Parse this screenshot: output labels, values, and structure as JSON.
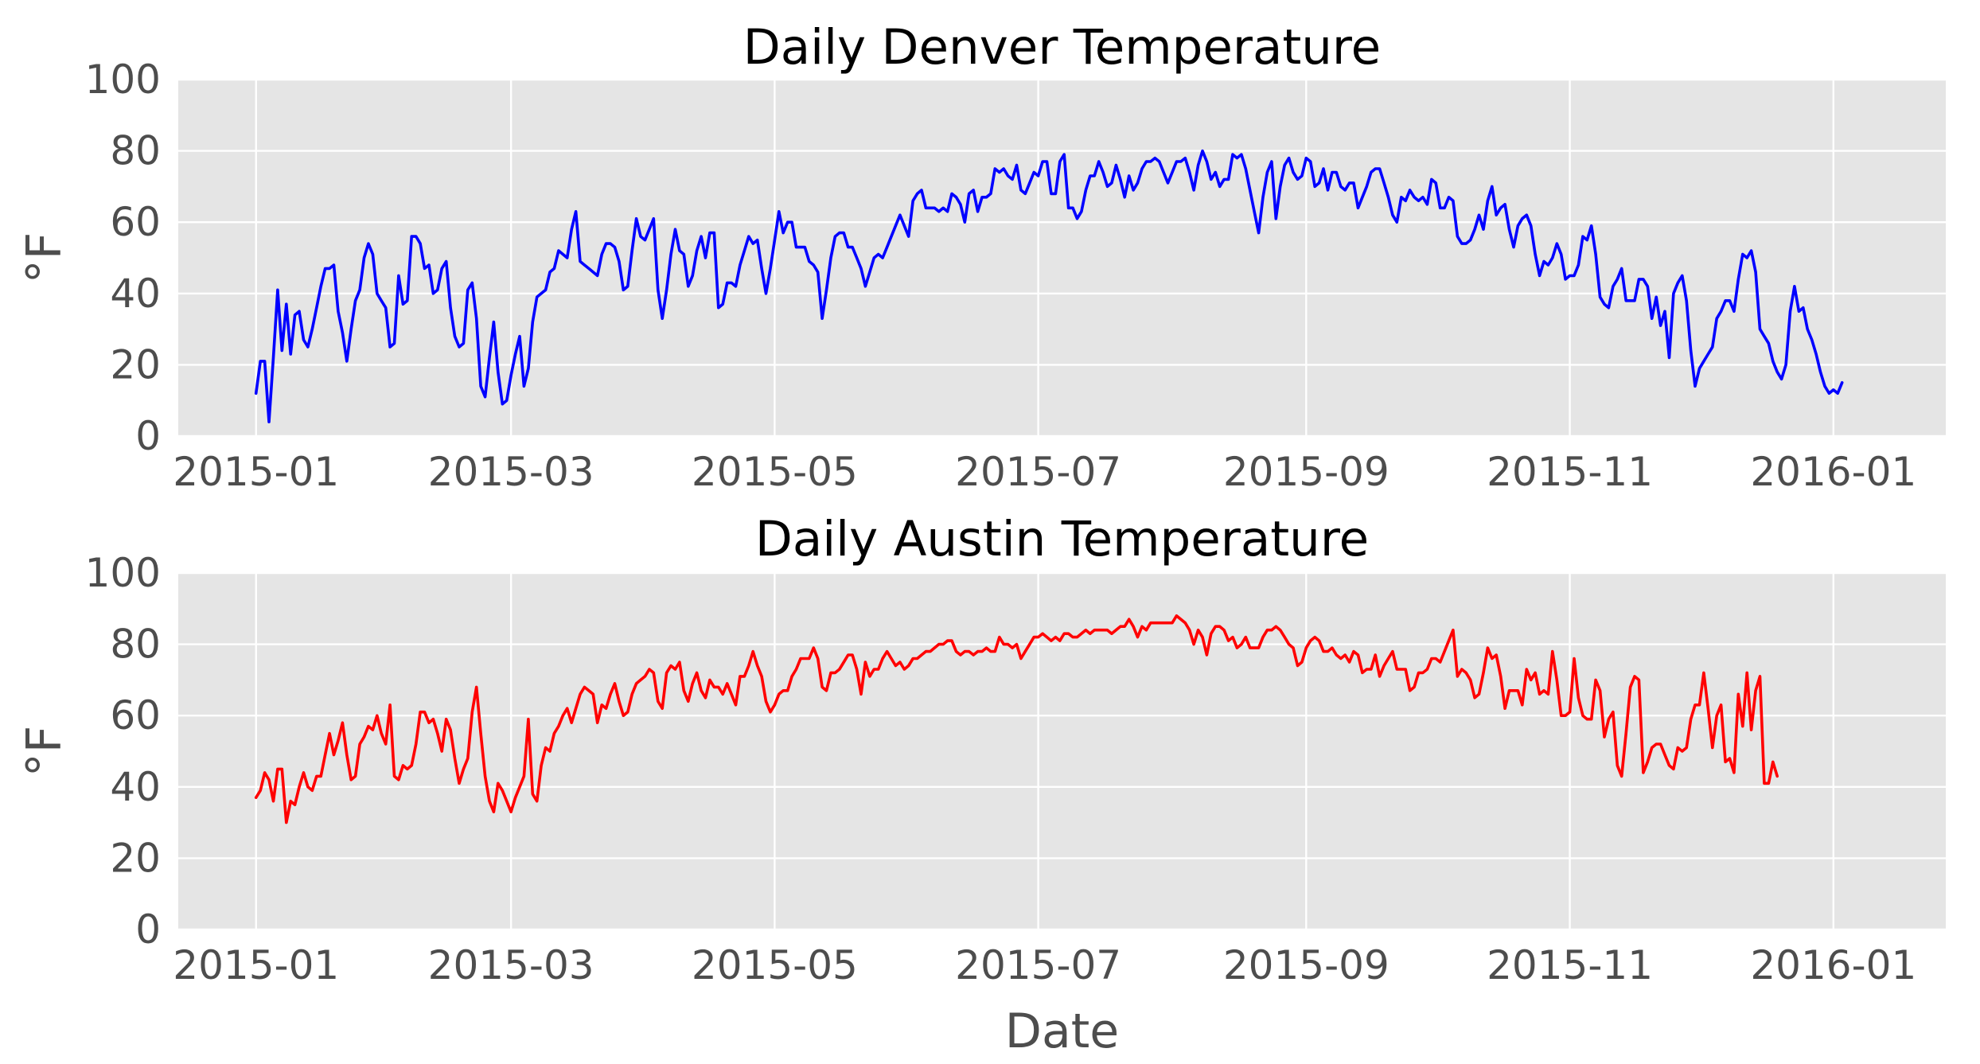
{
  "chart_data": [
    {
      "type": "line",
      "title": "Daily Denver Temperature",
      "xlabel": "",
      "ylabel": "°F",
      "ylim": [
        0,
        100
      ],
      "xlim": [
        "2014-12-14",
        "2016-01-27"
      ],
      "yticks": [
        "0",
        "20",
        "40",
        "60",
        "80",
        "100"
      ],
      "xticks": [
        {
          "date": "2015-01-01",
          "label": "2015-01"
        },
        {
          "date": "2015-03-01",
          "label": "2015-03"
        },
        {
          "date": "2015-05-01",
          "label": "2015-05"
        },
        {
          "date": "2015-07-01",
          "label": "2015-07"
        },
        {
          "date": "2015-09-01",
          "label": "2015-09"
        },
        {
          "date": "2015-11-01",
          "label": "2015-11"
        },
        {
          "date": "2016-01-01",
          "label": "2016-01"
        }
      ],
      "grid": true,
      "color": "#0000ff",
      "start_date": "2015-01-01",
      "y": [
        12,
        21,
        21,
        4,
        22,
        41,
        24,
        37,
        23,
        34,
        35,
        27,
        25,
        30,
        36,
        42,
        47,
        47,
        48,
        35,
        29,
        21,
        30,
        38,
        41,
        50,
        54,
        51,
        40,
        38,
        36,
        25,
        26,
        45,
        37,
        38,
        56,
        56,
        54,
        47,
        48,
        40,
        41,
        47,
        49,
        36,
        28,
        25,
        26,
        41,
        43,
        33,
        14,
        11,
        22,
        32,
        18,
        9,
        10,
        17,
        23,
        28,
        14,
        19,
        32,
        39,
        40,
        41,
        46,
        47,
        52,
        51,
        50,
        58,
        63,
        49,
        48,
        47,
        46,
        45,
        51,
        54,
        54,
        53,
        49,
        41,
        42,
        52,
        61,
        56,
        55,
        58,
        61,
        41,
        33,
        41,
        51,
        58,
        52,
        51,
        42,
        45,
        52,
        56,
        50,
        57,
        57,
        36,
        37,
        43,
        43,
        42,
        48,
        52,
        56,
        54,
        55,
        47,
        40,
        47,
        55,
        63,
        57,
        60,
        60,
        53,
        53,
        53,
        49,
        48,
        46,
        33,
        41,
        50,
        56,
        57,
        57,
        53,
        53,
        50,
        47,
        42,
        46,
        50,
        51,
        50,
        53,
        56,
        59,
        62,
        59,
        56,
        66,
        68,
        69,
        64,
        64,
        64,
        63,
        64,
        63,
        68,
        67,
        65,
        60,
        68,
        69,
        63,
        67,
        67,
        68,
        75,
        74,
        75,
        73,
        72,
        76,
        69,
        68,
        71,
        74,
        73,
        77,
        77,
        68,
        68,
        77,
        79,
        64,
        64,
        61,
        63,
        69,
        73,
        73,
        77,
        74,
        70,
        71,
        76,
        72,
        67,
        73,
        69,
        71,
        75,
        77,
        77,
        78,
        77,
        74,
        71,
        74,
        77,
        77,
        78,
        74,
        69,
        76,
        80,
        77,
        72,
        74,
        70,
        72,
        72,
        79,
        78,
        79,
        75,
        69,
        63,
        57,
        67,
        74,
        77,
        61,
        70,
        76,
        78,
        74,
        72,
        73,
        78,
        77,
        70,
        71,
        75,
        69,
        74,
        74,
        70,
        69,
        71,
        71,
        64,
        67,
        70,
        74,
        75,
        75,
        71,
        67,
        62,
        60,
        67,
        66,
        69,
        67,
        66,
        67,
        65,
        72,
        71,
        64,
        64,
        67,
        66,
        56,
        54,
        54,
        55,
        58,
        62,
        58,
        66,
        70,
        62,
        64,
        65,
        58,
        53,
        59,
        61,
        62,
        59,
        51,
        45,
        49,
        48,
        50,
        54,
        51,
        44,
        45,
        45,
        48,
        56,
        55,
        59,
        51,
        39,
        37,
        36,
        42,
        44,
        47,
        38,
        38,
        38,
        44,
        44,
        42,
        33,
        39,
        31,
        35,
        22,
        40,
        43,
        45,
        38,
        24,
        14,
        19,
        21,
        23,
        25,
        33,
        35,
        38,
        38,
        35,
        44,
        51,
        50,
        52,
        46,
        30,
        28,
        26,
        21,
        18,
        16,
        20,
        35,
        42,
        35,
        36,
        30,
        27,
        23,
        18,
        14,
        12,
        13,
        12,
        15
      ]
    },
    {
      "type": "line",
      "title": "Daily Austin Temperature",
      "xlabel": "Date",
      "ylabel": "°F",
      "ylim": [
        0,
        100
      ],
      "xlim": [
        "2014-12-14",
        "2016-01-27"
      ],
      "yticks": [
        "0",
        "20",
        "40",
        "60",
        "80",
        "100"
      ],
      "xticks": [
        {
          "date": "2015-01-01",
          "label": "2015-01"
        },
        {
          "date": "2015-03-01",
          "label": "2015-03"
        },
        {
          "date": "2015-05-01",
          "label": "2015-05"
        },
        {
          "date": "2015-07-01",
          "label": "2015-07"
        },
        {
          "date": "2015-09-01",
          "label": "2015-09"
        },
        {
          "date": "2015-11-01",
          "label": "2015-11"
        },
        {
          "date": "2016-01-01",
          "label": "2016-01"
        }
      ],
      "grid": true,
      "color": "#ff0000",
      "start_date": "2015-01-01",
      "y": [
        37,
        39,
        44,
        42,
        36,
        45,
        45,
        30,
        36,
        35,
        40,
        44,
        40,
        39,
        43,
        43,
        49,
        55,
        49,
        53,
        58,
        49,
        42,
        43,
        52,
        54,
        57,
        56,
        60,
        55,
        52,
        63,
        43,
        42,
        46,
        45,
        46,
        52,
        61,
        61,
        58,
        59,
        55,
        50,
        59,
        56,
        48,
        41,
        45,
        48,
        61,
        68,
        55,
        43,
        36,
        33,
        41,
        39,
        36,
        33,
        37,
        40,
        43,
        59,
        38,
        36,
        46,
        51,
        50,
        55,
        57,
        60,
        62,
        58,
        62,
        66,
        68,
        67,
        66,
        58,
        63,
        62,
        66,
        69,
        64,
        60,
        61,
        66,
        69,
        70,
        71,
        73,
        72,
        64,
        62,
        72,
        74,
        73,
        75,
        67,
        64,
        69,
        72,
        67,
        65,
        70,
        68,
        68,
        66,
        69,
        66,
        63,
        71,
        71,
        74,
        78,
        74,
        71,
        64,
        61,
        63,
        66,
        67,
        67,
        71,
        73,
        76,
        76,
        76,
        79,
        76,
        68,
        67,
        72,
        72,
        73,
        75,
        77,
        77,
        73,
        66,
        75,
        71,
        73,
        73,
        76,
        78,
        76,
        74,
        75,
        73,
        74,
        76,
        76,
        77,
        78,
        78,
        79,
        80,
        80,
        81,
        81,
        78,
        77,
        78,
        78,
        77,
        78,
        78,
        79,
        78,
        78,
        82,
        80,
        80,
        79,
        80,
        76,
        78,
        80,
        82,
        82,
        83,
        82,
        81,
        82,
        81,
        83,
        83,
        82,
        82,
        83,
        84,
        83,
        84,
        84,
        84,
        84,
        83,
        84,
        85,
        85,
        87,
        85,
        82,
        85,
        84,
        86,
        86,
        86,
        86,
        86,
        86,
        88,
        87,
        86,
        84,
        80,
        84,
        82,
        77,
        83,
        85,
        85,
        84,
        81,
        82,
        79,
        80,
        82,
        79,
        79,
        79,
        82,
        84,
        84,
        85,
        84,
        82,
        80,
        79,
        74,
        75,
        79,
        81,
        82,
        81,
        78,
        78,
        79,
        77,
        76,
        77,
        75,
        78,
        77,
        72,
        73,
        73,
        77,
        71,
        74,
        76,
        78,
        73,
        73,
        73,
        67,
        68,
        72,
        72,
        73,
        76,
        76,
        75,
        78,
        81,
        84,
        71,
        73,
        72,
        70,
        65,
        66,
        72,
        79,
        76,
        77,
        71,
        62,
        67,
        67,
        67,
        63,
        73,
        70,
        72,
        66,
        67,
        66,
        78,
        70,
        60,
        60,
        61,
        76,
        65,
        60,
        59,
        59,
        70,
        67,
        54,
        59,
        61,
        46,
        43,
        55,
        68,
        71,
        70,
        44,
        47,
        51,
        52,
        52,
        49,
        46,
        45,
        51,
        50,
        51,
        59,
        63,
        63,
        72,
        62,
        51,
        60,
        63,
        47,
        48,
        44,
        66,
        57,
        72,
        56,
        67,
        71,
        41,
        41,
        47,
        43
      ]
    }
  ]
}
